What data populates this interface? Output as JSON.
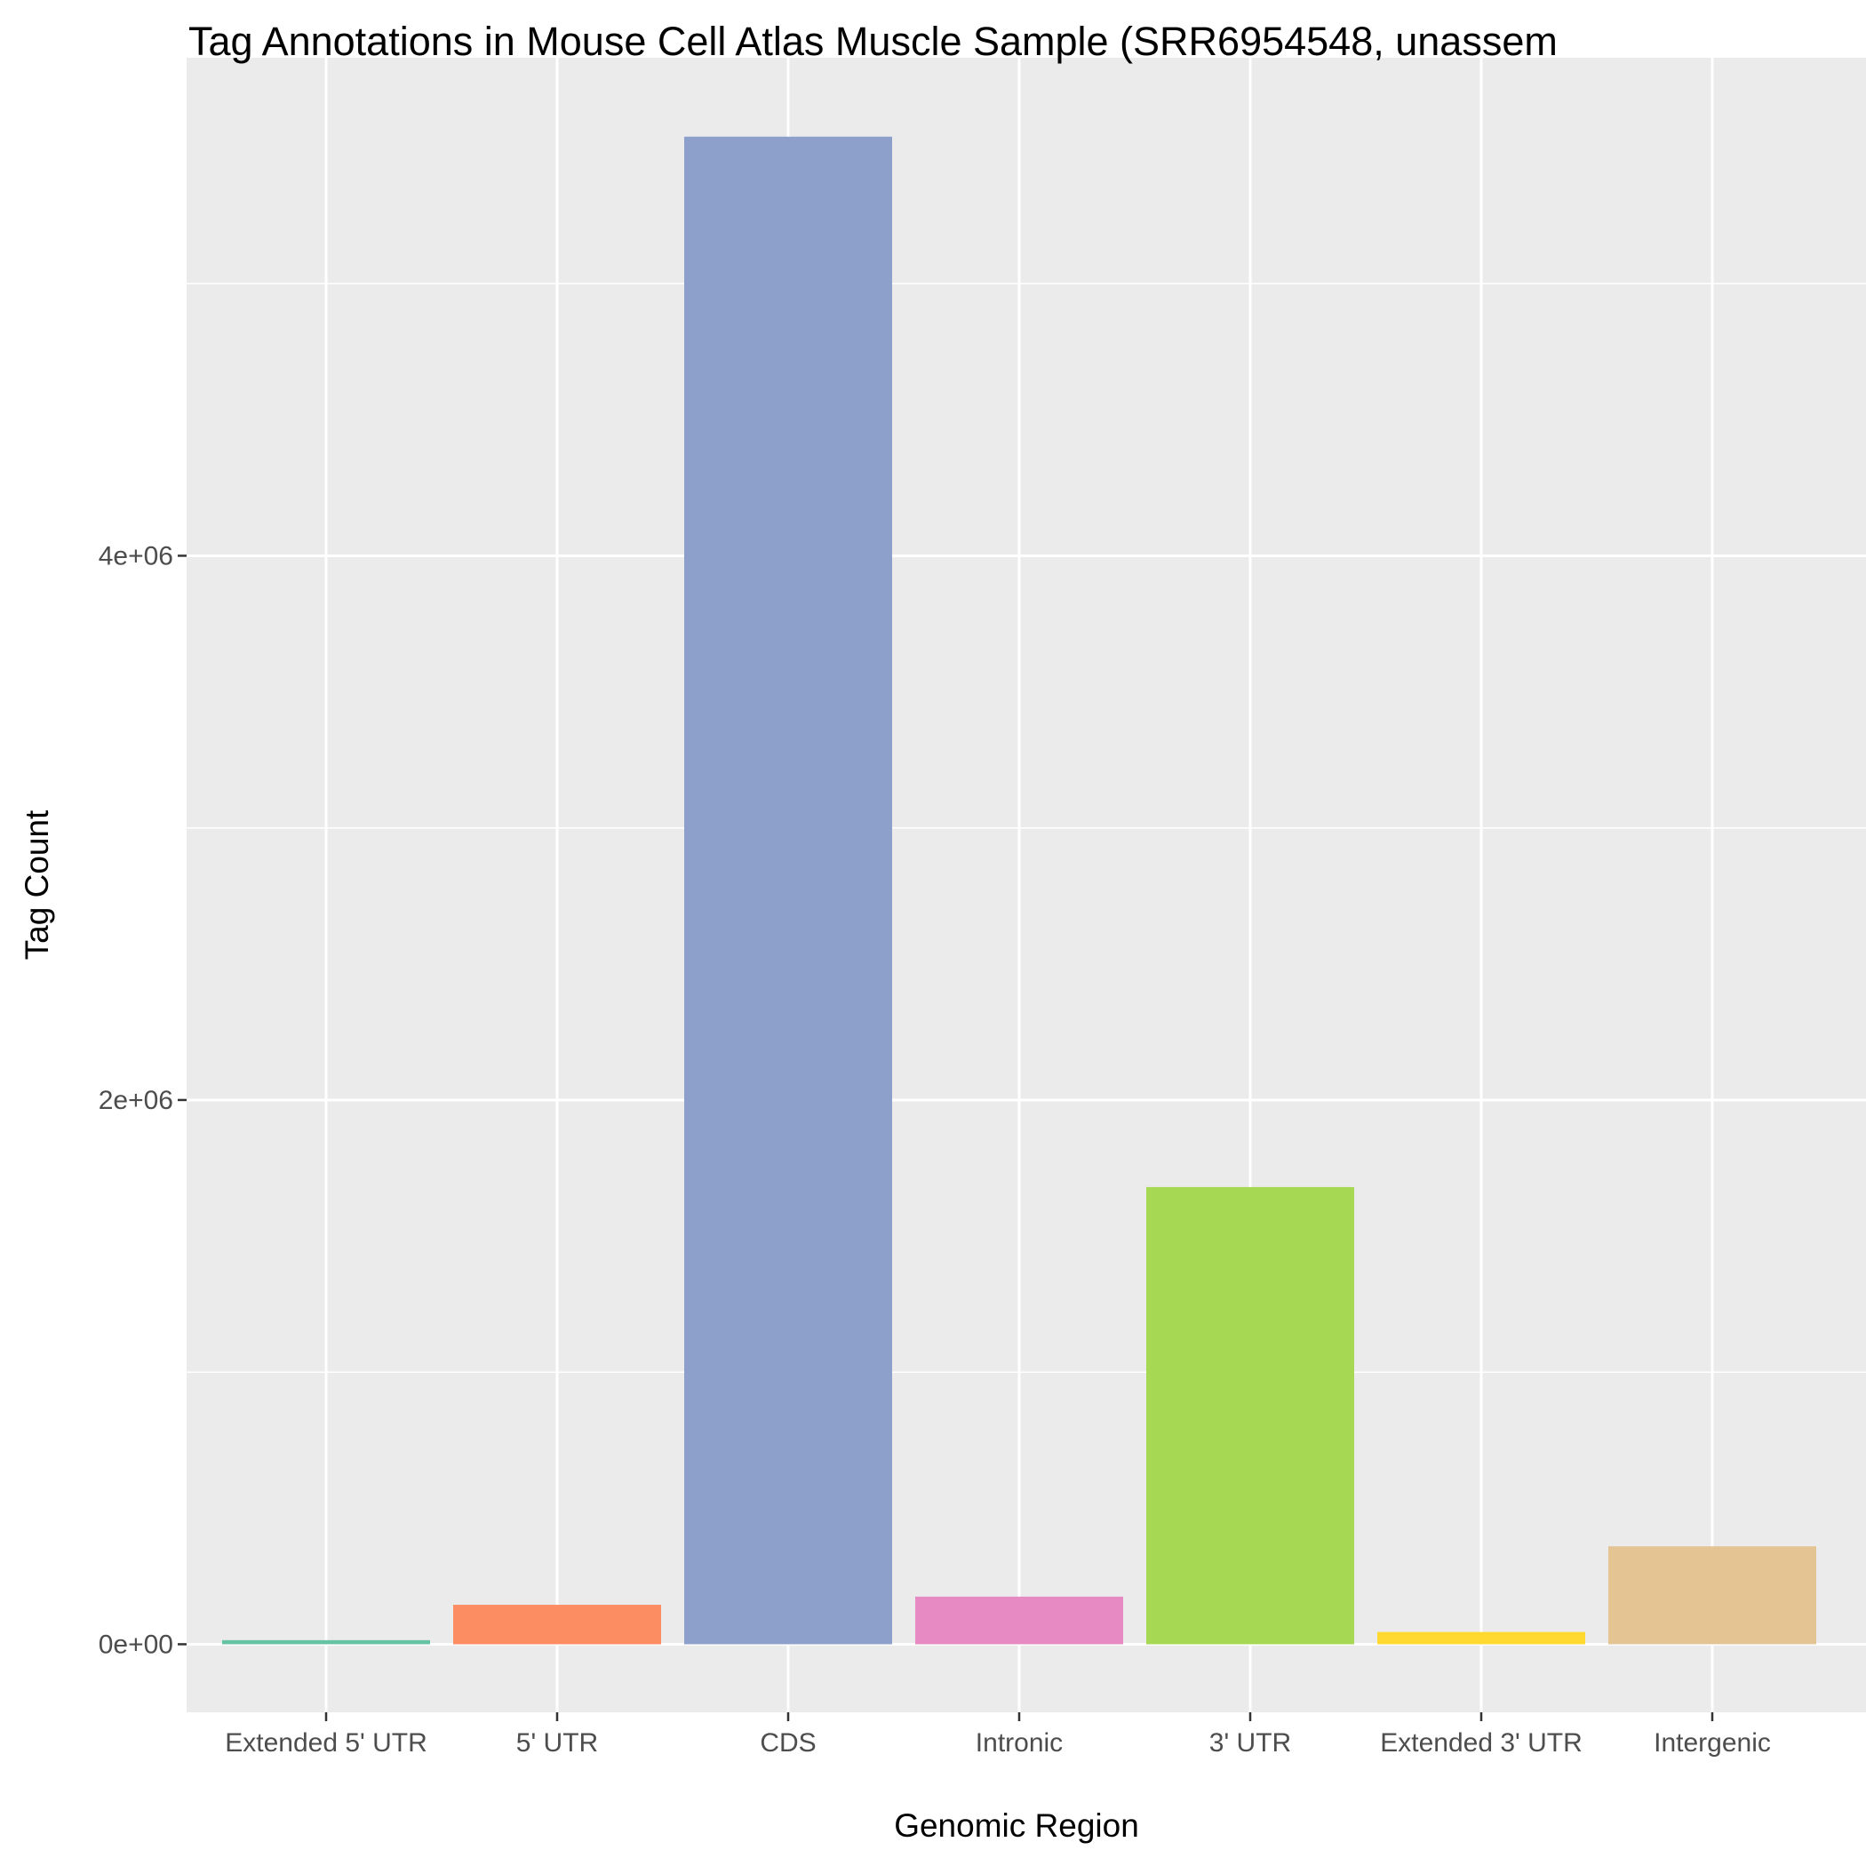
{
  "chart_data": {
    "type": "bar",
    "title": "Tag Annotations in Mouse Cell Atlas Muscle Sample (SRR6954548, unassem",
    "xlabel": "Genomic Region",
    "ylabel": "Tag Count",
    "categories": [
      "Extended 5' UTR",
      "5' UTR",
      "CDS",
      "Intronic",
      "3' UTR",
      "Extended 3' UTR",
      "Intergenic"
    ],
    "values": [
      15000,
      145000,
      5540000,
      175000,
      1680000,
      45000,
      360000
    ],
    "colors": [
      "#66C2A5",
      "#FC8D62",
      "#8DA0CB",
      "#E78AC3",
      "#A6D854",
      "#FFD92F",
      "#E5C494"
    ],
    "ylim": [
      -250000,
      5830000
    ],
    "yticks": [
      0,
      2000000,
      4000000
    ],
    "ytick_labels": [
      "0e+00",
      "2e+06",
      "4e+06"
    ],
    "grid": true,
    "legend": "none"
  }
}
